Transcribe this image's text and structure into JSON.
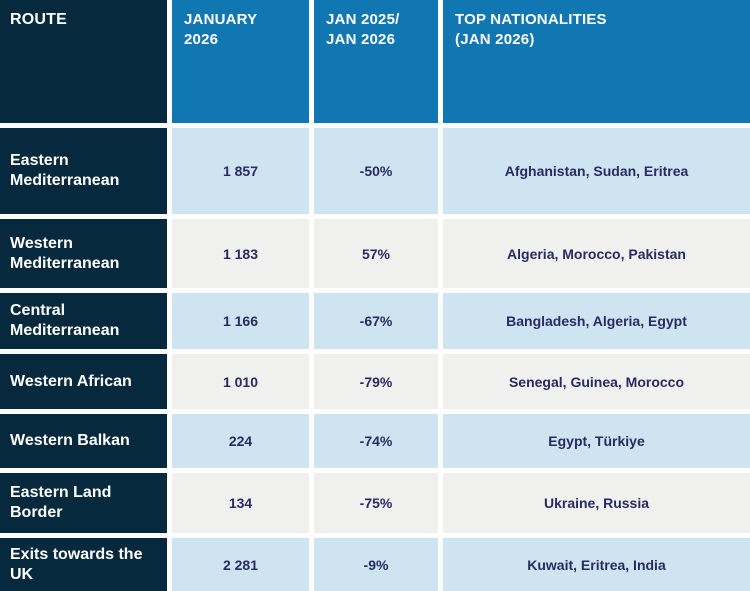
{
  "colors": {
    "navy": "#07293d",
    "blue": "#1177b3",
    "light-blue": "#cee4f1",
    "light-gray": "#f0f0ee",
    "cell-text": "#282b63",
    "gap": "#ffffff"
  },
  "header": {
    "route": "ROUTE",
    "january": [
      "JANUARY",
      "2026"
    ],
    "change": [
      "JAN 2025/",
      "JAN 2026"
    ],
    "nationalities": [
      "TOP NATIONALITIES",
      "(JAN 2026)"
    ]
  },
  "chart_data": {
    "type": "table",
    "columns": [
      "ROUTE",
      "JANUARY 2026",
      "JAN 2025/ JAN 2026",
      "TOP NATIONALITIES (JAN 2026)"
    ],
    "rows": [
      {
        "route": "Eastern Mediterranean",
        "value": "1 857",
        "change": "-50%",
        "nationalities": "Afghanistan, Sudan, Eritrea"
      },
      {
        "route": "Western Mediterranean",
        "value": "1 183",
        "change": "57%",
        "nationalities": "Algeria, Morocco, Pakistan"
      },
      {
        "route": "Central Mediterranean",
        "value": "1 166",
        "change": "-67%",
        "nationalities": "Bangladesh, Algeria, Egypt"
      },
      {
        "route": "Western African",
        "value": "1 010",
        "change": "-79%",
        "nationalities": "Senegal, Guinea, Morocco"
      },
      {
        "route": "Western Balkan",
        "value": "224",
        "change": "-74%",
        "nationalities": "Egypt, Türkiye"
      },
      {
        "route": "Eastern Land Border",
        "value": "134",
        "change": "-75%",
        "nationalities": "Ukraine, Russia"
      },
      {
        "route": "Exits towards the UK",
        "value": "2 281",
        "change": "-9%",
        "nationalities": "Kuwait, Eritrea, India"
      }
    ]
  }
}
